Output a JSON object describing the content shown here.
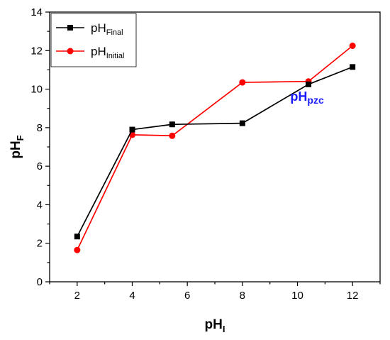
{
  "chart_data": {
    "type": "line",
    "xlabel": {
      "main": "pH",
      "sub": "I"
    },
    "ylabel": {
      "main": "pH",
      "sub": "F"
    },
    "xlim": [
      1,
      13
    ],
    "ylim": [
      0,
      14
    ],
    "xticks": [
      2,
      4,
      6,
      8,
      10,
      12
    ],
    "yticks": [
      0,
      2,
      4,
      6,
      8,
      10,
      12,
      14
    ],
    "grid": false,
    "legend_position": "top-left",
    "series": [
      {
        "name_main": "pH",
        "name_sub": "Final",
        "color": "#000000",
        "marker": "square",
        "x": [
          2,
          4,
          5.45,
          8,
          10.4,
          12
        ],
        "y": [
          2.35,
          7.9,
          8.17,
          8.23,
          10.25,
          11.15
        ]
      },
      {
        "name_main": "pH",
        "name_sub": "Initial",
        "color": "#ff0000",
        "marker": "circle",
        "x": [
          2,
          4,
          5.45,
          8,
          10.4,
          12
        ],
        "y": [
          1.65,
          7.63,
          7.58,
          10.35,
          10.4,
          12.25
        ]
      }
    ],
    "annotation": {
      "main": "pH",
      "sub": "pzc",
      "color": "#1a1aff",
      "x": 10.35,
      "y": 9.4
    }
  }
}
